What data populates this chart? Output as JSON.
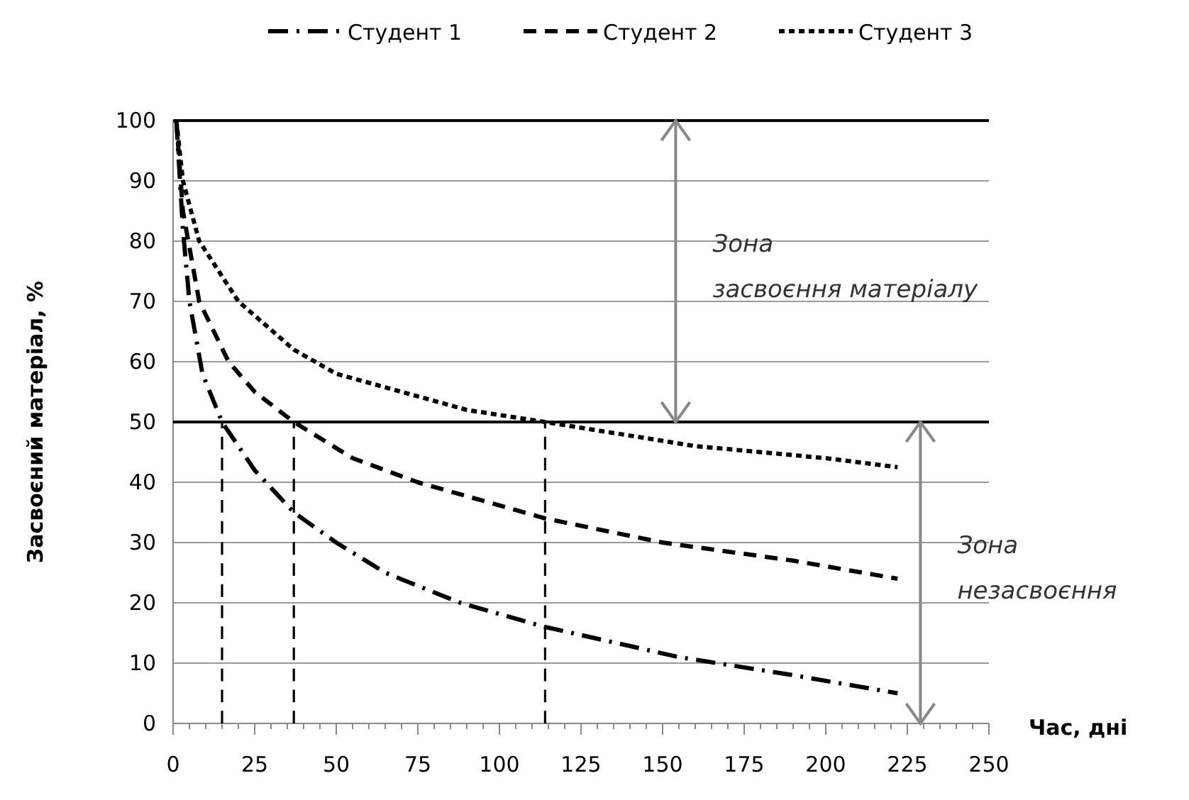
{
  "chart_data": {
    "type": "line",
    "xlabel": "Час, дні",
    "ylabel": "Засвоєний матеріал, %",
    "xlim": [
      0,
      250
    ],
    "ylim": [
      0,
      100
    ],
    "xticks": [
      0,
      {
        "value": 5,
        "label": null
      },
      {
        "value": 10,
        "label": null
      },
      {
        "value": 15,
        "label": null
      },
      {
        "value": 20,
        "label": null
      },
      25,
      {
        "value": 30,
        "label": null
      },
      {
        "value": 35,
        "label": null
      },
      {
        "value": 40,
        "label": null
      },
      {
        "value": 45,
        "label": null
      },
      50,
      {
        "value": 55,
        "label": null
      },
      {
        "value": 60,
        "label": null
      },
      {
        "value": 65,
        "label": null
      },
      {
        "value": 70,
        "label": null
      },
      75,
      {
        "value": 80,
        "label": null
      },
      {
        "value": 85,
        "label": null
      },
      {
        "value": 90,
        "label": null
      },
      {
        "value": 95,
        "label": null
      },
      100,
      {
        "value": 105,
        "label": null
      },
      {
        "value": 110,
        "label": null
      },
      {
        "value": 115,
        "label": null
      },
      {
        "value": 120,
        "label": null
      },
      125,
      {
        "value": 130,
        "label": null
      },
      {
        "value": 135,
        "label": null
      },
      {
        "value": 140,
        "label": null
      },
      {
        "value": 145,
        "label": null
      },
      150,
      {
        "value": 155,
        "label": null
      },
      {
        "value": 160,
        "label": null
      },
      {
        "value": 165,
        "label": null
      },
      {
        "value": 170,
        "label": null
      },
      175,
      {
        "value": 180,
        "label": null
      },
      {
        "value": 185,
        "label": null
      },
      {
        "value": 190,
        "label": null
      },
      {
        "value": 195,
        "label": null
      },
      200,
      {
        "value": 205,
        "label": null
      },
      {
        "value": 210,
        "label": null
      },
      {
        "value": 215,
        "label": null
      },
      {
        "value": 220,
        "label": null
      },
      225,
      {
        "value": 230,
        "label": null
      },
      {
        "value": 235,
        "label": null
      },
      {
        "value": 240,
        "label": null
      },
      {
        "value": 245,
        "label": null
      },
      250
    ],
    "yticks": [
      0,
      10,
      20,
      30,
      40,
      50,
      60,
      70,
      80,
      90,
      100
    ],
    "grid": "y",
    "legend": "top",
    "series": [
      {
        "name": "Студент 1",
        "color": "#000000",
        "line_style": "dashdot",
        "x": [
          1,
          3,
          5,
          9,
          15,
          25,
          37,
          50,
          65,
          88,
          114,
          155,
          190,
          222
        ],
        "values": [
          100,
          82,
          70,
          58,
          50,
          42,
          35,
          30,
          25,
          20,
          16,
          11,
          8,
          5
        ]
      },
      {
        "name": "Студент 2",
        "color": "#000000",
        "line_style": "dashed",
        "x": [
          1,
          3,
          8,
          17,
          25,
          37,
          55,
          75,
          114,
          150,
          190,
          222
        ],
        "values": [
          100,
          85,
          70,
          60,
          55,
          50,
          44,
          40,
          34,
          30,
          27,
          24
        ]
      },
      {
        "name": "Студент 3",
        "color": "#000000",
        "line_style": "dotted",
        "x": [
          1,
          3,
          8,
          20,
          37,
          50,
          70,
          90,
          114,
          160,
          200,
          222
        ],
        "values": [
          100,
          90,
          80,
          70,
          62,
          58,
          55,
          52,
          50,
          46,
          44,
          42.5
        ]
      },
      {
        "color": "#000000",
        "line_style": "dashed",
        "x": [
          15,
          15
        ],
        "values": [
          0,
          50
        ]
      },
      {
        "color": "#000000",
        "line_style": "dashed",
        "x": [
          37,
          37
        ],
        "values": [
          0,
          50
        ]
      },
      {
        "color": "#000000",
        "line_style": "dashed",
        "x": [
          114,
          114
        ],
        "values": [
          0,
          50
        ]
      }
    ],
    "ref_lines": [
      {
        "axis": "y",
        "value": 100,
        "color": "#000000"
      },
      {
        "axis": "y",
        "value": 50,
        "color": "#000000"
      }
    ],
    "annotations": [
      "Зона засвоєння матеріалу",
      "Зона незасвоєння"
    ]
  }
}
